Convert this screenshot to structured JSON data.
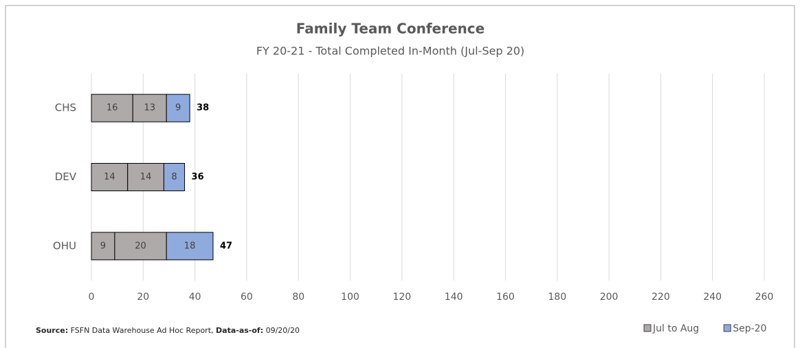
{
  "chart_data": {
    "type": "stacked_barh",
    "title": "Family Team Conference",
    "subtitle": "FY 20-21  -  Total Completed In-Month  (Jul-Sep 20)",
    "categories": [
      "CHS",
      "DEV",
      "OHU"
    ],
    "series": [
      {
        "name": "Jul to Aug",
        "color": "#aeaaaa",
        "values": [
          16,
          14,
          9
        ]
      },
      {
        "color": "#aeaaaa",
        "values": [
          13,
          14,
          20
        ]
      },
      {
        "name": "Sep-20",
        "color": "#8faadc",
        "values": [
          9,
          8,
          18
        ]
      }
    ],
    "total_labels": [
      38,
      36,
      47
    ],
    "xlim": [
      0,
      260
    ],
    "xticks": [
      0,
      20,
      40,
      60,
      80,
      100,
      120,
      140,
      160,
      180,
      200,
      220,
      240,
      260
    ],
    "grid": true,
    "legend": "bottom-right",
    "source": {
      "label": "Source:",
      "text": "FSFN Data Warehouse Ad Hoc Report,",
      "date_label": "Data-as-of:",
      "date": "09/20/20"
    }
  }
}
